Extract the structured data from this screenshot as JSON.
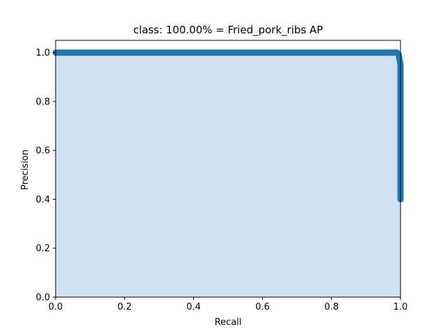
{
  "chart_data": {
    "type": "area",
    "title": "class: 100.00% = Fried_pork_ribs AP",
    "xlabel": "Recall",
    "ylabel": "Precision",
    "xlim": [
      0.0,
      1.0
    ],
    "ylim": [
      0.0,
      1.05
    ],
    "xticks": [
      "0.0",
      "0.2",
      "0.4",
      "0.6",
      "0.8",
      "1.0"
    ],
    "yticks": [
      "0.0",
      "0.2",
      "0.4",
      "0.6",
      "0.8",
      "1.0"
    ],
    "grid": false,
    "legend": "none",
    "colors": {
      "line": "#1f77b4",
      "fill": "#d0e2f0"
    },
    "series": [
      {
        "x": [
          0.0,
          0.99,
          0.995,
          1.0,
          1.0,
          1.0,
          1.0,
          1.0,
          1.0,
          1.0
        ],
        "y": [
          1.0,
          1.0,
          0.99,
          0.95,
          0.85,
          0.75,
          0.65,
          0.55,
          0.45,
          0.4
        ]
      }
    ]
  }
}
